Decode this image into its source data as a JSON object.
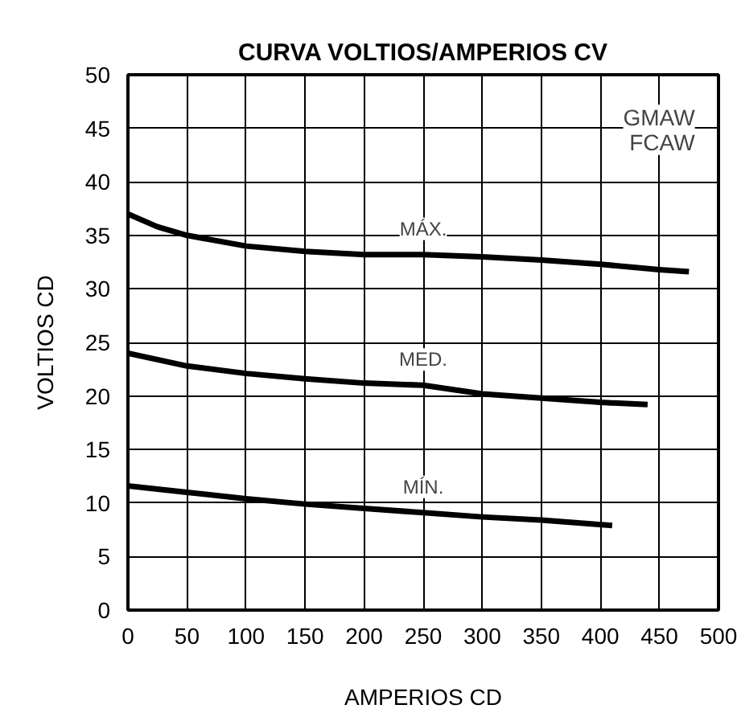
{
  "chart_data": {
    "type": "line",
    "title": "CURVA VOLTIOS/AMPERIOS CV",
    "xlabel": "AMPERIOS CD",
    "ylabel": "VOLTIOS CD",
    "annotations": [
      "GMAW\nFCAW"
    ],
    "xlim": [
      0,
      500
    ],
    "ylim": [
      0,
      50
    ],
    "xticks": [
      0,
      50,
      100,
      150,
      200,
      250,
      300,
      350,
      400,
      450,
      500
    ],
    "yticks": [
      0,
      5,
      10,
      15,
      20,
      25,
      30,
      35,
      40,
      45,
      50
    ],
    "grid": true,
    "marker": "none",
    "line_style": "solid",
    "series": [
      {
        "name": "MÁX.",
        "color": "#000000",
        "x": [
          0,
          25,
          50,
          100,
          150,
          200,
          250,
          300,
          350,
          400,
          450,
          475
        ],
        "values": [
          37,
          35.8,
          35,
          34,
          33.5,
          33.2,
          33.2,
          33,
          32.7,
          32.3,
          31.8,
          31.6
        ]
      },
      {
        "name": "MED.",
        "color": "#000000",
        "x": [
          0,
          50,
          100,
          150,
          200,
          250,
          300,
          350,
          400,
          440
        ],
        "values": [
          24,
          22.8,
          22.1,
          21.6,
          21.2,
          21,
          20.2,
          19.8,
          19.4,
          19.2
        ]
      },
      {
        "name": "MÍN.",
        "color": "#000000",
        "x": [
          0,
          50,
          100,
          150,
          200,
          250,
          300,
          350,
          410
        ],
        "values": [
          11.6,
          11,
          10.4,
          9.9,
          9.5,
          9.1,
          8.7,
          8.4,
          7.9
        ]
      }
    ]
  }
}
